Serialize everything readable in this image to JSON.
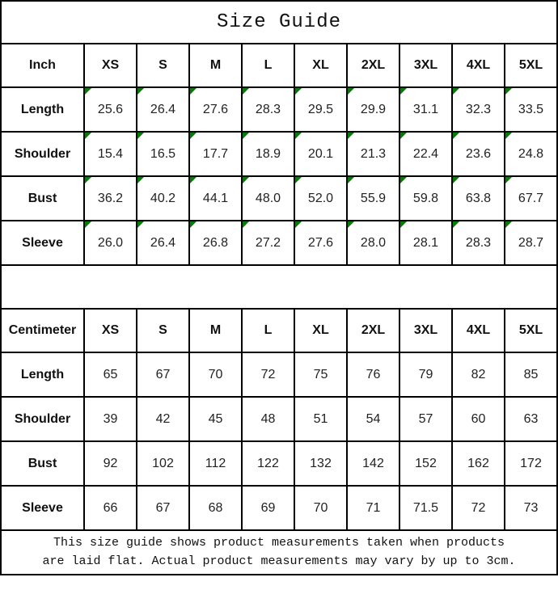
{
  "title": "Size Guide",
  "colors": {
    "border": "#000000",
    "background": "#ffffff",
    "text": "#000000",
    "flag_triangle": "#008000"
  },
  "inch": {
    "unit_label": "Inch",
    "sizes": [
      "XS",
      "S",
      "M",
      "L",
      "XL",
      "2XL",
      "3XL",
      "4XL",
      "5XL"
    ],
    "rows": [
      {
        "label": "Length",
        "values": [
          "25.6",
          "26.4",
          "27.6",
          "28.3",
          "29.5",
          "29.9",
          "31.1",
          "32.3",
          "33.5"
        ]
      },
      {
        "label": "Shoulder",
        "values": [
          "15.4",
          "16.5",
          "17.7",
          "18.9",
          "20.1",
          "21.3",
          "22.4",
          "23.6",
          "24.8"
        ]
      },
      {
        "label": "Bust",
        "values": [
          "36.2",
          "40.2",
          "44.1",
          "48.0",
          "52.0",
          "55.9",
          "59.8",
          "63.8",
          "67.7"
        ]
      },
      {
        "label": "Sleeve",
        "values": [
          "26.0",
          "26.4",
          "26.8",
          "27.2",
          "27.6",
          "28.0",
          "28.1",
          "28.3",
          "28.7"
        ]
      }
    ]
  },
  "cm": {
    "unit_label": "Centimeter",
    "sizes": [
      "XS",
      "S",
      "M",
      "L",
      "XL",
      "2XL",
      "3XL",
      "4XL",
      "5XL"
    ],
    "rows": [
      {
        "label": "Length",
        "values": [
          "65",
          "67",
          "70",
          "72",
          "75",
          "76",
          "79",
          "82",
          "85"
        ]
      },
      {
        "label": "Shoulder",
        "values": [
          "39",
          "42",
          "45",
          "48",
          "51",
          "54",
          "57",
          "60",
          "63"
        ]
      },
      {
        "label": "Bust",
        "values": [
          "92",
          "102",
          "112",
          "122",
          "132",
          "142",
          "152",
          "162",
          "172"
        ]
      },
      {
        "label": "Sleeve",
        "values": [
          "66",
          "67",
          "68",
          "69",
          "70",
          "71",
          "71.5",
          "72",
          "73"
        ]
      }
    ]
  },
  "footer": {
    "line1": "This size guide shows product measurements taken when products",
    "line2": "are laid flat. Actual product measurements may vary by up to 3cm."
  }
}
